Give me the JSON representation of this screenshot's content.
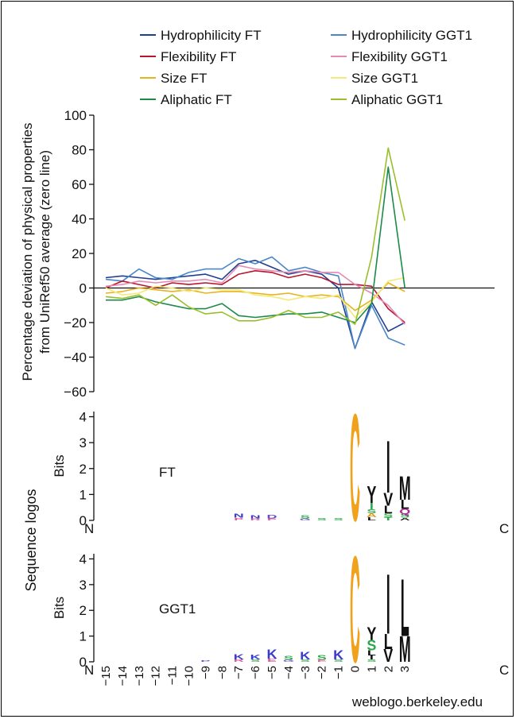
{
  "chart_data": [
    {
      "type": "line",
      "ylabel": "Percentage deviation of physical properties from UniRef50 average (zero line)",
      "ylabel_lines": [
        "Percentage deviation of physical properties",
        "from UniRef50 average (zero line)"
      ],
      "ylim": [
        -60,
        100
      ],
      "yticks": [
        "100",
        "80",
        "60",
        "40",
        "20",
        "0",
        "−20",
        "−40",
        "−60"
      ],
      "ytick_values": [
        100,
        80,
        60,
        40,
        20,
        0,
        -20,
        -40,
        -60
      ],
      "x": [
        -15,
        -14,
        -13,
        -12,
        -11,
        -10,
        -9,
        -8,
        -7,
        -6,
        -5,
        -4,
        -3,
        -2,
        -1,
        0,
        1,
        2,
        3
      ],
      "zero_line": true,
      "legend_position": "top",
      "series": [
        {
          "name": "Hydrophilicity FT",
          "color": "#1f3f8f",
          "values": [
            6,
            7,
            6,
            5,
            6,
            7,
            8,
            5,
            14,
            16,
            12,
            8,
            10,
            8,
            0,
            -35,
            -8,
            -25,
            -20
          ]
        },
        {
          "name": "Hydrophilicity GGT1",
          "color": "#4a86c8",
          "values": [
            5,
            4,
            11,
            6,
            5,
            9,
            11,
            11,
            17,
            14,
            18,
            10,
            12,
            9,
            7,
            -35,
            -10,
            -29,
            -33
          ]
        },
        {
          "name": "Flexibility FT",
          "color": "#b5172e",
          "values": [
            0,
            4,
            2,
            0,
            3,
            2,
            3,
            2,
            8,
            10,
            9,
            6,
            8,
            6,
            2,
            2,
            1,
            -12,
            -20
          ]
        },
        {
          "name": "Flexibility GGT1",
          "color": "#e68ab4",
          "values": [
            1,
            2,
            4,
            3,
            4,
            4,
            5,
            3,
            13,
            11,
            10,
            9,
            10,
            9,
            9,
            2,
            -3,
            -10,
            -21
          ]
        },
        {
          "name": "Size FT",
          "color": "#e8b320",
          "values": [
            -3,
            -2,
            0,
            -1,
            -2,
            -1,
            -3,
            -2,
            -2,
            -3,
            -4,
            -3,
            -5,
            -4,
            -5,
            -13,
            -7,
            3,
            -2
          ]
        },
        {
          "name": "Size GGT1",
          "color": "#f3ea7a",
          "values": [
            0,
            -4,
            -3,
            1,
            0,
            -2,
            0,
            -1,
            -1,
            -4,
            -5,
            -7,
            -5,
            -6,
            -4,
            -17,
            -8,
            4,
            6
          ]
        },
        {
          "name": "Aliphatic FT",
          "color": "#1d8a4b",
          "values": [
            -7,
            -7,
            -5,
            -8,
            -10,
            -12,
            -12,
            -9,
            -16,
            -17,
            -16,
            -15,
            -15,
            -14,
            -17,
            -20,
            -9,
            70,
            0
          ]
        },
        {
          "name": "Aliphatic GGT1",
          "color": "#9bbf2c",
          "values": [
            -5,
            -6,
            -4,
            -10,
            -4,
            -11,
            -15,
            -14,
            -19,
            -19,
            -17,
            -13,
            -17,
            -17,
            -14,
            -21,
            18,
            81,
            39
          ]
        }
      ]
    },
    {
      "type": "sequence_logo",
      "name": "FT",
      "ylabel": "Bits",
      "yticks": [
        "4",
        "3",
        "2",
        "1",
        "0"
      ],
      "ylim": [
        0,
        4.2
      ],
      "left_label": "N",
      "right_label": "C",
      "stacks": [
        {
          "pos": -7,
          "letters": [
            {
              "l": "N",
              "bits": 0.15,
              "color": "#3b3bcc"
            },
            {
              "l": "P",
              "bits": 0.1,
              "color": "#e05a9a"
            }
          ]
        },
        {
          "pos": -6,
          "letters": [
            {
              "l": "N",
              "bits": 0.12,
              "color": "#3b3bcc"
            },
            {
              "l": "R",
              "bits": 0.08,
              "color": "#e05a9a"
            }
          ]
        },
        {
          "pos": -5,
          "letters": [
            {
              "l": "D",
              "bits": 0.14,
              "color": "#6a4bd0"
            },
            {
              "l": "P",
              "bits": 0.08,
              "color": "#e05a9a"
            }
          ]
        },
        {
          "pos": -3,
          "letters": [
            {
              "l": "S",
              "bits": 0.12,
              "color": "#2aa84a"
            },
            {
              "l": "G",
              "bits": 0.07,
              "color": "#6a4bd0"
            }
          ]
        },
        {
          "pos": -2,
          "letters": [
            {
              "l": "S",
              "bits": 0.1,
              "color": "#2aa84a"
            }
          ]
        },
        {
          "pos": -1,
          "letters": [
            {
              "l": "S",
              "bits": 0.1,
              "color": "#2aa84a"
            }
          ]
        },
        {
          "pos": 0,
          "letters": [
            {
              "l": "C",
              "bits": 4.1,
              "color": "#f0a21c"
            }
          ]
        },
        {
          "pos": 1,
          "letters": [
            {
              "l": "Y",
              "bits": 0.65,
              "color": "#111111"
            },
            {
              "l": "I",
              "bits": 0.25,
              "color": "#2aa84a"
            },
            {
              "l": "A",
              "bits": 0.15,
              "color": "#e0a020"
            },
            {
              "l": "S",
              "bits": 0.15,
              "color": "#2aa84a"
            },
            {
              "l": "L",
              "bits": 0.12,
              "color": "#111111"
            }
          ]
        },
        {
          "pos": 2,
          "letters": [
            {
              "l": "I",
              "bits": 2.0,
              "color": "#111111"
            },
            {
              "l": "V",
              "bits": 0.5,
              "color": "#111111"
            },
            {
              "l": "L",
              "bits": 0.3,
              "color": "#111111"
            },
            {
              "l": "S",
              "bits": 0.15,
              "color": "#2aa84a"
            },
            {
              "l": "T",
              "bits": 0.12,
              "color": "#2aa84a"
            }
          ]
        },
        {
          "pos": 3,
          "letters": [
            {
              "l": "M",
              "bits": 0.9,
              "color": "#111111"
            },
            {
              "l": "L",
              "bits": 0.35,
              "color": "#111111"
            },
            {
              "l": "Q",
              "bits": 0.2,
              "color": "#b8229a"
            },
            {
              "l": "S",
              "bits": 0.15,
              "color": "#2aa84a"
            },
            {
              "l": "A",
              "bits": 0.1,
              "color": "#111111"
            }
          ]
        }
      ]
    },
    {
      "type": "sequence_logo",
      "name": "GGT1",
      "ylabel": "Bits",
      "yticks": [
        "4",
        "3",
        "2",
        "1",
        "0"
      ],
      "ylim": [
        0,
        4.2
      ],
      "left_label": "N",
      "right_label": "C",
      "x_ticks": [
        "−15",
        "−14",
        "−13",
        "−12",
        "−11",
        "−10",
        "−9",
        "−8",
        "−7",
        "−6",
        "−5",
        "−4",
        "−3",
        "−2",
        "−1",
        "0",
        "1",
        "2",
        "3"
      ],
      "stacks": [
        {
          "pos": -9,
          "letters": [
            {
              "l": "P",
              "bits": 0.06,
              "color": "#6a4bd0"
            }
          ]
        },
        {
          "pos": -7,
          "letters": [
            {
              "l": "K",
              "bits": 0.2,
              "color": "#3b3bcc"
            },
            {
              "l": "R",
              "bits": 0.1,
              "color": "#e05a9a"
            }
          ]
        },
        {
          "pos": -6,
          "letters": [
            {
              "l": "K",
              "bits": 0.18,
              "color": "#3b3bcc"
            },
            {
              "l": "S",
              "bits": 0.1,
              "color": "#2aa84a"
            }
          ]
        },
        {
          "pos": -5,
          "letters": [
            {
              "l": "K",
              "bits": 0.35,
              "color": "#3b3bcc"
            },
            {
              "l": "E",
              "bits": 0.12,
              "color": "#e05a9a"
            }
          ]
        },
        {
          "pos": -4,
          "letters": [
            {
              "l": "S",
              "bits": 0.15,
              "color": "#2aa84a"
            },
            {
              "l": "G",
              "bits": 0.08,
              "color": "#6a4bd0"
            }
          ]
        },
        {
          "pos": -3,
          "letters": [
            {
              "l": "K",
              "bits": 0.3,
              "color": "#3b3bcc"
            },
            {
              "l": "S",
              "bits": 0.1,
              "color": "#2aa84a"
            }
          ]
        },
        {
          "pos": -2,
          "letters": [
            {
              "l": "S",
              "bits": 0.18,
              "color": "#2aa84a"
            },
            {
              "l": "E",
              "bits": 0.08,
              "color": "#e05a9a"
            }
          ]
        },
        {
          "pos": -1,
          "letters": [
            {
              "l": "K",
              "bits": 0.35,
              "color": "#3b3bcc"
            },
            {
              "l": "S",
              "bits": 0.1,
              "color": "#2aa84a"
            }
          ]
        },
        {
          "pos": 0,
          "letters": [
            {
              "l": "C",
              "bits": 4.1,
              "color": "#f0a21c"
            }
          ]
        },
        {
          "pos": 1,
          "letters": [
            {
              "l": "Y",
              "bits": 0.5,
              "color": "#111111"
            },
            {
              "l": "S",
              "bits": 0.4,
              "color": "#2aa84a"
            },
            {
              "l": "L",
              "bits": 0.2,
              "color": "#111111"
            },
            {
              "l": "I",
              "bits": 0.15,
              "color": "#111111"
            },
            {
              "l": "S",
              "bits": 0.1,
              "color": "#2aa84a"
            }
          ]
        },
        {
          "pos": 2,
          "letters": [
            {
              "l": "I",
              "bits": 2.3,
              "color": "#111111"
            },
            {
              "l": "L",
              "bits": 0.6,
              "color": "#111111"
            },
            {
              "l": "V",
              "bits": 0.5,
              "color": "#111111"
            }
          ]
        },
        {
          "pos": 3,
          "letters": [
            {
              "l": "L",
              "bits": 2.2,
              "color": "#111111"
            },
            {
              "l": "M",
              "bits": 1.0,
              "color": "#111111"
            }
          ]
        }
      ]
    }
  ],
  "sequence_logos_label": "Sequence logos",
  "credit": "weblogo.berkeley.edu"
}
